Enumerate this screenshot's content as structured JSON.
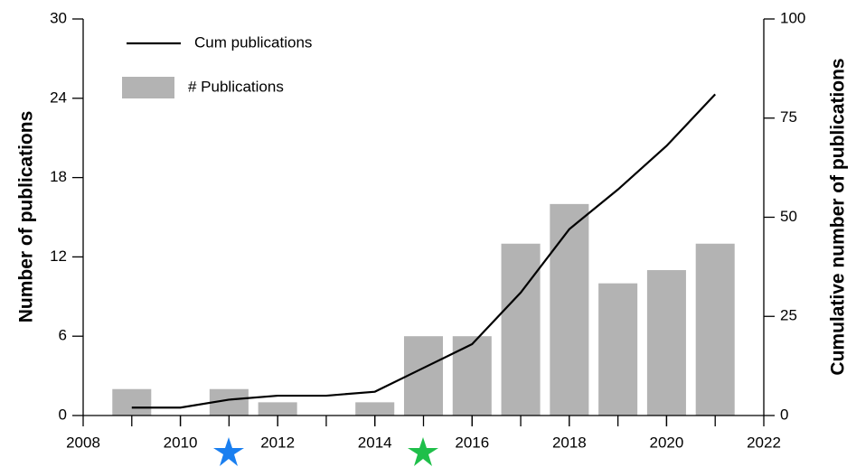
{
  "chart_data": {
    "type": "bar",
    "x": [
      2009,
      2010,
      2011,
      2012,
      2013,
      2014,
      2015,
      2016,
      2017,
      2018,
      2019,
      2020,
      2021
    ],
    "series": [
      {
        "name": "# Publications",
        "type": "bar",
        "color": "#b3b3b3",
        "axis": "y",
        "values": [
          2,
          0,
          2,
          1,
          0,
          1,
          6,
          6,
          13,
          16,
          10,
          11,
          13
        ]
      },
      {
        "name": "Cum publications",
        "type": "line",
        "color": "#000000",
        "axis": "y2",
        "values": [
          2,
          2,
          4,
          5,
          5,
          6,
          12,
          18,
          31,
          47,
          57,
          68,
          81
        ]
      }
    ],
    "ylabel": "Number of publications",
    "y2label": "Cumulative number of publications",
    "xlim": [
      2008,
      2022
    ],
    "xticks": [
      2008,
      2010,
      2012,
      2014,
      2016,
      2018,
      2020,
      2022
    ],
    "ylim": [
      0,
      30
    ],
    "yticks": [
      0,
      6,
      12,
      18,
      24,
      30
    ],
    "y2lim": [
      0,
      100
    ],
    "y2ticks": [
      0,
      25,
      50,
      75,
      100
    ],
    "legend": "upper left"
  }
}
